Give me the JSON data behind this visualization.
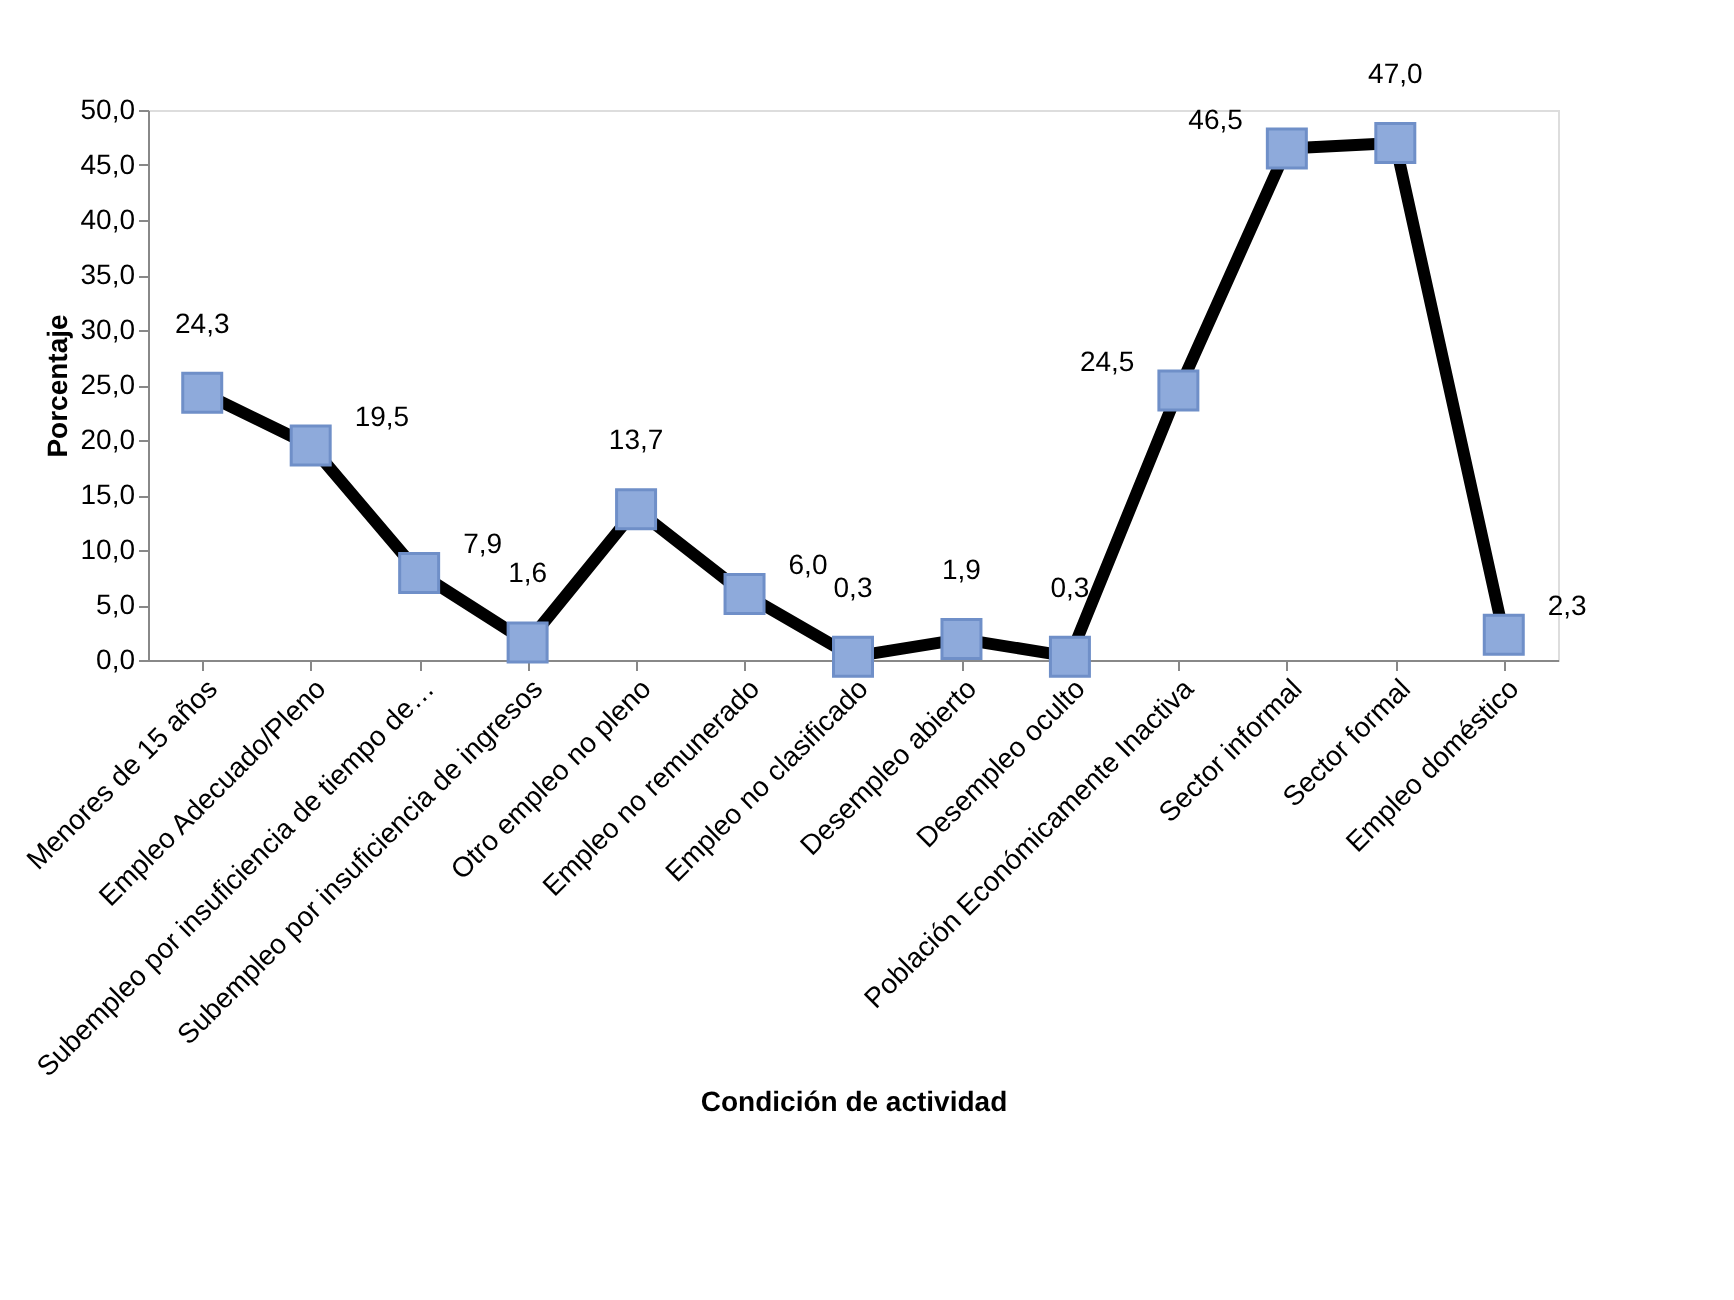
{
  "chart_data": {
    "type": "line",
    "xlabel": "Condición de actividad",
    "ylabel": "Porcentaje",
    "categories": [
      "Menores de 15 años",
      "Empleo Adecuado/Pleno",
      "Subempleo por insuficiencia de tiempo de…",
      "Subempleo por insuficiencia de ingresos",
      "Otro empleo no pleno",
      "Empleo no remunerado",
      "Empleo no clasificado",
      "Desempleo abierto",
      "Desempleo oculto",
      "Población Económicamente Inactiva",
      "Sector informal",
      "Sector formal",
      "Empleo doméstico"
    ],
    "series": [
      {
        "color": "#000000",
        "values": [
          24.3,
          19.5,
          7.9,
          1.6,
          13.7,
          6.0,
          0.3,
          1.9,
          0.3,
          24.5,
          46.5,
          47.0,
          2.3
        ],
        "value_labels": [
          "24,3",
          "19,5",
          "7,9",
          "1,6",
          "13,7",
          "6,0",
          "0,3",
          "1,9",
          "0,3",
          "24,5",
          "46,5",
          "47,0",
          "2,3"
        ]
      }
    ],
    "ylim": [
      0,
      50
    ],
    "yticks": [
      {
        "value": 0,
        "label": "0,0"
      },
      {
        "value": 5,
        "label": "5,0"
      },
      {
        "value": 10,
        "label": "10,0"
      },
      {
        "value": 15,
        "label": "15,0"
      },
      {
        "value": 20,
        "label": "20,0"
      },
      {
        "value": 25,
        "label": "25,0"
      },
      {
        "value": 30,
        "label": "30,0"
      },
      {
        "value": 35,
        "label": "35,0"
      },
      {
        "value": 40,
        "label": "40,0"
      },
      {
        "value": 45,
        "label": "45,0"
      },
      {
        "value": 50,
        "label": "50,0"
      }
    ],
    "marker": "square",
    "grid": false
  }
}
